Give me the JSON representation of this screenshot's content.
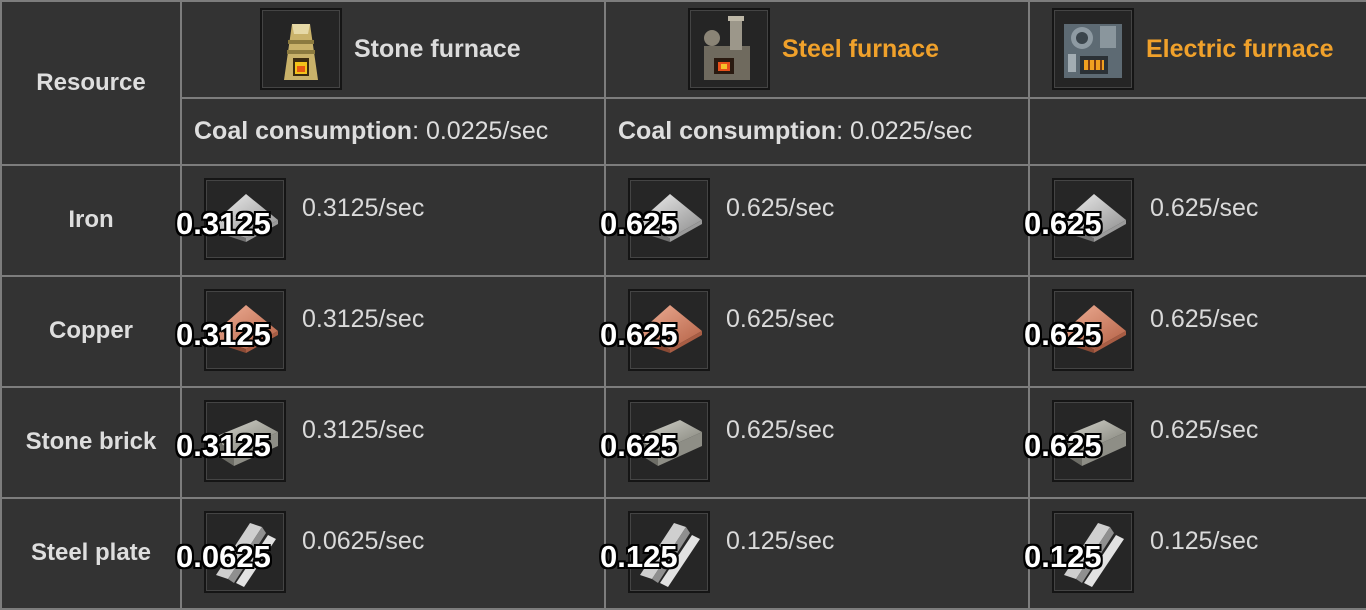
{
  "header": {
    "resource_label": "Resource",
    "furnaces": [
      {
        "name": "Stone furnace",
        "icon": "stone-furnace-icon",
        "name_color": "#dcdcdc"
      },
      {
        "name": "Steel furnace",
        "icon": "steel-furnace-icon",
        "name_color": "#f0a12b"
      },
      {
        "name": "Electric furnace",
        "icon": "electric-furnace-icon",
        "name_color": "#f0a12b"
      }
    ],
    "coal": [
      {
        "label": "Coal consumption",
        "value": ": 0.0225/sec"
      },
      {
        "label": "Coal consumption",
        "value": ": 0.0225/sec"
      },
      {
        "label": "",
        "value": ""
      }
    ]
  },
  "rows": [
    {
      "resource": "Iron",
      "icon": "iron-plate-icon",
      "cells": [
        {
          "qty": "0.3125",
          "rate": "0.3125/sec"
        },
        {
          "qty": "0.625",
          "rate": "0.625/sec"
        },
        {
          "qty": "0.625",
          "rate": "0.625/sec"
        }
      ]
    },
    {
      "resource": "Copper",
      "icon": "copper-plate-icon",
      "cells": [
        {
          "qty": "0.3125",
          "rate": "0.3125/sec"
        },
        {
          "qty": "0.625",
          "rate": "0.625/sec"
        },
        {
          "qty": "0.625",
          "rate": "0.625/sec"
        }
      ]
    },
    {
      "resource": "Stone brick",
      "icon": "stone-brick-icon",
      "cells": [
        {
          "qty": "0.3125",
          "rate": "0.3125/sec"
        },
        {
          "qty": "0.625",
          "rate": "0.625/sec"
        },
        {
          "qty": "0.625",
          "rate": "0.625/sec"
        }
      ]
    },
    {
      "resource": "Steel plate",
      "icon": "steel-plate-icon",
      "cells": [
        {
          "qty": "0.0625",
          "rate": "0.0625/sec"
        },
        {
          "qty": "0.125",
          "rate": "0.125/sec"
        },
        {
          "qty": "0.125",
          "rate": "0.125/sec"
        }
      ]
    }
  ],
  "colors": {
    "background": "#333333",
    "border": "#7d7d7d",
    "accent": "#f0a12b",
    "text": "#dedede"
  }
}
